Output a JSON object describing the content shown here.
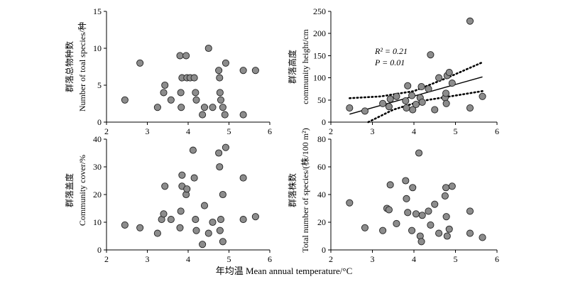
{
  "xlabel_shared": "年均温 Mean annual temperature/°C",
  "chart_data": [
    {
      "type": "scatter",
      "ylabel_cn": "群落总物种数",
      "ylabel_en": "Number of toal species/种",
      "xlim": [
        2,
        6
      ],
      "ylim": [
        0,
        15
      ],
      "xticks": [
        "2",
        "3",
        "4",
        "5",
        "6"
      ],
      "yticks": [
        "0",
        "5",
        "10",
        "15"
      ],
      "points": [
        {
          "x": 2.45,
          "y": 3
        },
        {
          "x": 2.82,
          "y": 8
        },
        {
          "x": 3.25,
          "y": 2
        },
        {
          "x": 3.4,
          "y": 4
        },
        {
          "x": 3.43,
          "y": 5
        },
        {
          "x": 3.58,
          "y": 3
        },
        {
          "x": 3.8,
          "y": 9
        },
        {
          "x": 3.82,
          "y": 4
        },
        {
          "x": 3.85,
          "y": 6
        },
        {
          "x": 3.95,
          "y": 9
        },
        {
          "x": 3.97,
          "y": 6
        },
        {
          "x": 4.05,
          "y": 6
        },
        {
          "x": 4.15,
          "y": 6
        },
        {
          "x": 4.18,
          "y": 4
        },
        {
          "x": 4.2,
          "y": 3
        },
        {
          "x": 3.83,
          "y": 2
        },
        {
          "x": 4.35,
          "y": 1
        },
        {
          "x": 4.4,
          "y": 2
        },
        {
          "x": 4.5,
          "y": 10
        },
        {
          "x": 4.6,
          "y": 2
        },
        {
          "x": 4.75,
          "y": 7
        },
        {
          "x": 4.77,
          "y": 6
        },
        {
          "x": 4.78,
          "y": 4
        },
        {
          "x": 4.8,
          "y": 3
        },
        {
          "x": 4.85,
          "y": 2
        },
        {
          "x": 4.9,
          "y": 1
        },
        {
          "x": 4.92,
          "y": 8
        },
        {
          "x": 5.35,
          "y": 7
        },
        {
          "x": 5.35,
          "y": 1
        },
        {
          "x": 5.65,
          "y": 7
        }
      ]
    },
    {
      "type": "scatter",
      "ylabel_cn": "群落高度",
      "ylabel_en": "community height/cm",
      "xlim": [
        2,
        6
      ],
      "ylim": [
        0,
        250
      ],
      "xticks": [
        "2",
        "3",
        "4",
        "5",
        "6"
      ],
      "yticks": [
        "0",
        "50",
        "100",
        "150",
        "200",
        "250"
      ],
      "annotation_r2": "R² = 0.21",
      "annotation_p": "P = 0.01",
      "fit": {
        "x1": 2.45,
        "y1": 18,
        "x2": 5.65,
        "y2": 102
      },
      "ci_upper": [
        [
          2.45,
          54
        ],
        [
          3.2,
          58
        ],
        [
          4.0,
          70
        ],
        [
          4.8,
          100
        ],
        [
          5.65,
          135
        ]
      ],
      "ci_lower": [
        [
          2.9,
          0
        ],
        [
          3.5,
          28
        ],
        [
          4.2,
          48
        ],
        [
          5.0,
          60
        ],
        [
          5.65,
          70
        ]
      ],
      "points": [
        {
          "x": 2.45,
          "y": 32
        },
        {
          "x": 2.82,
          "y": 25
        },
        {
          "x": 3.25,
          "y": 42
        },
        {
          "x": 3.4,
          "y": 35
        },
        {
          "x": 3.43,
          "y": 52
        },
        {
          "x": 3.58,
          "y": 58
        },
        {
          "x": 3.8,
          "y": 48
        },
        {
          "x": 3.82,
          "y": 32
        },
        {
          "x": 3.85,
          "y": 82
        },
        {
          "x": 3.95,
          "y": 60
        },
        {
          "x": 3.97,
          "y": 28
        },
        {
          "x": 4.05,
          "y": 40
        },
        {
          "x": 4.15,
          "y": 55
        },
        {
          "x": 4.18,
          "y": 80
        },
        {
          "x": 4.2,
          "y": 45
        },
        {
          "x": 4.35,
          "y": 75
        },
        {
          "x": 4.4,
          "y": 152
        },
        {
          "x": 4.5,
          "y": 28
        },
        {
          "x": 4.6,
          "y": 100
        },
        {
          "x": 4.75,
          "y": 55
        },
        {
          "x": 4.77,
          "y": 65
        },
        {
          "x": 4.78,
          "y": 42
        },
        {
          "x": 4.8,
          "y": 105
        },
        {
          "x": 4.85,
          "y": 112
        },
        {
          "x": 4.92,
          "y": 88
        },
        {
          "x": 5.35,
          "y": 228
        },
        {
          "x": 5.35,
          "y": 32
        },
        {
          "x": 5.65,
          "y": 58
        }
      ]
    },
    {
      "type": "scatter",
      "ylabel_cn": "群落盖度",
      "ylabel_en": "Community cover/%",
      "xlim": [
        2,
        6
      ],
      "ylim": [
        0,
        40
      ],
      "xticks": [
        "2",
        "3",
        "4",
        "5",
        "6"
      ],
      "yticks": [
        "0",
        "10",
        "20",
        "30",
        "40"
      ],
      "points": [
        {
          "x": 2.45,
          "y": 9
        },
        {
          "x": 2.82,
          "y": 8
        },
        {
          "x": 3.25,
          "y": 6
        },
        {
          "x": 3.35,
          "y": 11
        },
        {
          "x": 3.4,
          "y": 13
        },
        {
          "x": 3.43,
          "y": 23
        },
        {
          "x": 3.58,
          "y": 11
        },
        {
          "x": 3.8,
          "y": 8
        },
        {
          "x": 3.82,
          "y": 14
        },
        {
          "x": 3.85,
          "y": 27
        },
        {
          "x": 3.85,
          "y": 23
        },
        {
          "x": 3.95,
          "y": 20
        },
        {
          "x": 3.97,
          "y": 22
        },
        {
          "x": 4.12,
          "y": 36
        },
        {
          "x": 4.15,
          "y": 26
        },
        {
          "x": 4.18,
          "y": 11
        },
        {
          "x": 4.2,
          "y": 7
        },
        {
          "x": 4.35,
          "y": 2
        },
        {
          "x": 4.4,
          "y": 16
        },
        {
          "x": 4.5,
          "y": 6
        },
        {
          "x": 4.6,
          "y": 10
        },
        {
          "x": 4.75,
          "y": 35
        },
        {
          "x": 4.77,
          "y": 30
        },
        {
          "x": 4.78,
          "y": 7
        },
        {
          "x": 4.8,
          "y": 11
        },
        {
          "x": 4.85,
          "y": 20
        },
        {
          "x": 4.92,
          "y": 37
        },
        {
          "x": 5.35,
          "y": 26
        },
        {
          "x": 5.35,
          "y": 11
        },
        {
          "x": 5.65,
          "y": 12
        },
        {
          "x": 4.85,
          "y": 3
        }
      ]
    },
    {
      "type": "scatter",
      "ylabel_cn": "群落株数",
      "ylabel_en": "Total number of species/(株/100 m²)",
      "xlim": [
        2,
        6
      ],
      "ylim": [
        0,
        80
      ],
      "xticks": [
        "2",
        "3",
        "4",
        "5",
        "6"
      ],
      "yticks": [
        "0",
        "20",
        "40",
        "60",
        "80"
      ],
      "points": [
        {
          "x": 2.45,
          "y": 34
        },
        {
          "x": 2.82,
          "y": 16
        },
        {
          "x": 3.25,
          "y": 14
        },
        {
          "x": 3.35,
          "y": 30
        },
        {
          "x": 3.4,
          "y": 29
        },
        {
          "x": 3.43,
          "y": 47
        },
        {
          "x": 3.58,
          "y": 19
        },
        {
          "x": 3.8,
          "y": 50
        },
        {
          "x": 3.82,
          "y": 37
        },
        {
          "x": 3.85,
          "y": 27
        },
        {
          "x": 3.95,
          "y": 14
        },
        {
          "x": 3.97,
          "y": 45
        },
        {
          "x": 4.05,
          "y": 26
        },
        {
          "x": 4.12,
          "y": 70
        },
        {
          "x": 4.15,
          "y": 10
        },
        {
          "x": 4.18,
          "y": 6
        },
        {
          "x": 4.2,
          "y": 25
        },
        {
          "x": 4.35,
          "y": 28
        },
        {
          "x": 4.4,
          "y": 18
        },
        {
          "x": 4.5,
          "y": 33
        },
        {
          "x": 4.6,
          "y": 12
        },
        {
          "x": 4.75,
          "y": 39
        },
        {
          "x": 4.77,
          "y": 45
        },
        {
          "x": 4.78,
          "y": 24
        },
        {
          "x": 4.8,
          "y": 10
        },
        {
          "x": 4.85,
          "y": 15
        },
        {
          "x": 4.92,
          "y": 46
        },
        {
          "x": 5.35,
          "y": 28
        },
        {
          "x": 5.35,
          "y": 12
        },
        {
          "x": 5.65,
          "y": 9
        }
      ]
    }
  ]
}
